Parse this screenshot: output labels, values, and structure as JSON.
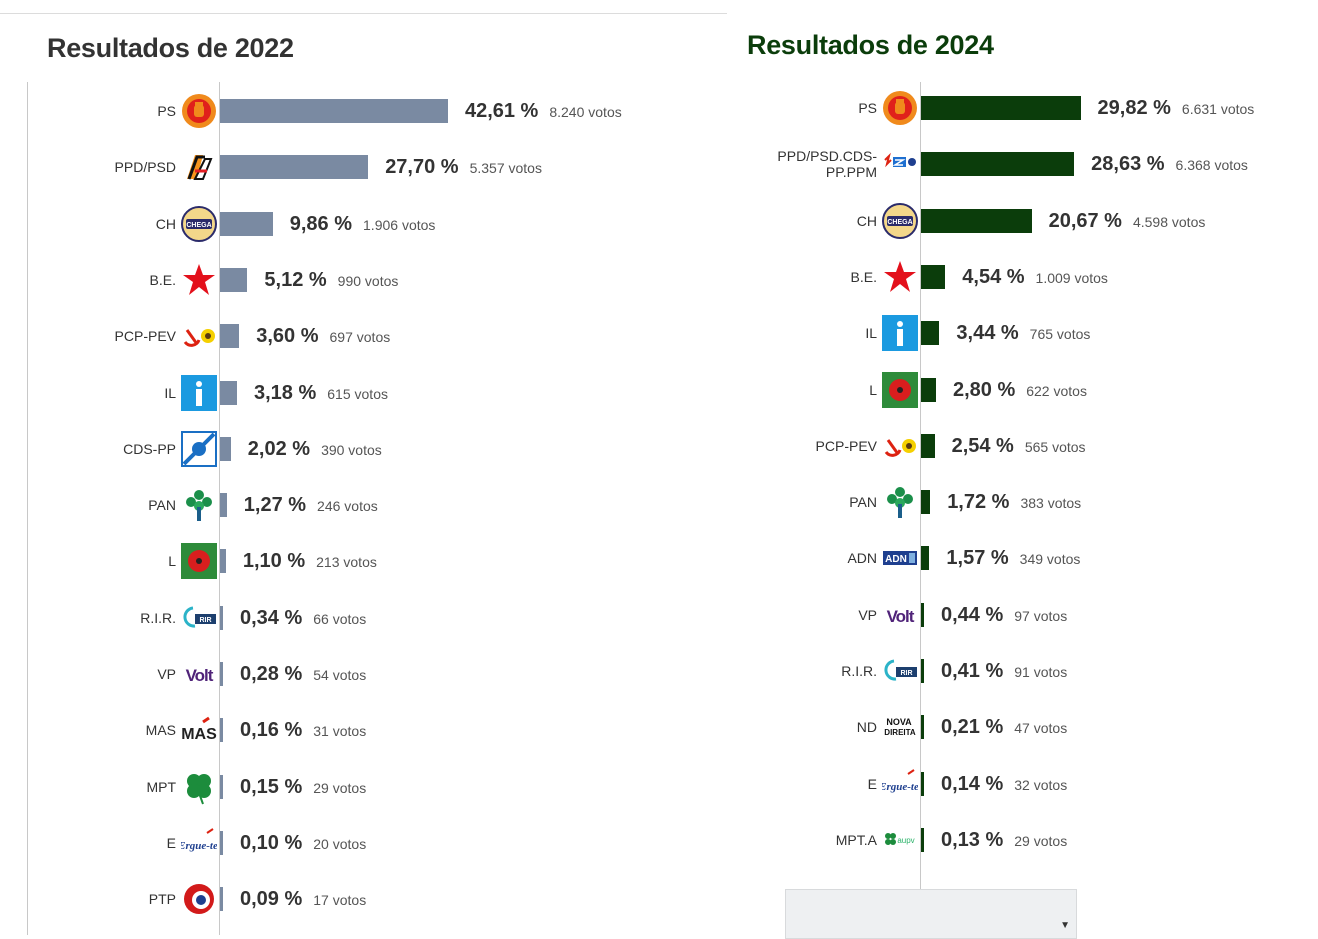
{
  "chart_data": [
    {
      "type": "bar",
      "title": "Resultados de 2022",
      "orientation": "horizontal",
      "bar_color": "#7a8aa2",
      "categories": [
        "PS",
        "PPD/PSD",
        "CH",
        "B.E.",
        "PCP-PEV",
        "IL",
        "CDS-PP",
        "PAN",
        "L",
        "R.I.R.",
        "VP",
        "MAS",
        "MPT",
        "E",
        "PTP"
      ],
      "values": [
        42.61,
        27.7,
        9.86,
        5.12,
        3.6,
        3.18,
        2.02,
        1.27,
        1.1,
        0.34,
        0.28,
        0.16,
        0.15,
        0.1,
        0.09
      ],
      "value_labels": [
        "42,61 %",
        "27,70 %",
        "9,86 %",
        "5,12 %",
        "3,60 %",
        "3,18 %",
        "2,02 %",
        "1,27 %",
        "1,10 %",
        "0,34 %",
        "0,28 %",
        "0,16 %",
        "0,15 %",
        "0,10 %",
        "0,09 %"
      ],
      "votes": [
        8240,
        5357,
        1906,
        990,
        697,
        615,
        390,
        246,
        213,
        66,
        54,
        31,
        29,
        20,
        17
      ],
      "votes_labels": [
        "8.240 votos",
        "5.357 votos",
        "1.906 votos",
        "990 votos",
        "697 votos",
        "615 votos",
        "390 votos",
        "246 votos",
        "213 votos",
        "66 votos",
        "54 votos",
        "31 votos",
        "29 votos",
        "20 votos",
        "17 votos"
      ],
      "logos": [
        "ps-logo",
        "psd-logo",
        "chega-logo",
        "be-logo",
        "pcp-pev-logo",
        "il-logo",
        "cds-pp-logo",
        "pan-logo",
        "livre-logo",
        "rir-logo",
        "volt-logo",
        "mas-logo",
        "mpt-logo",
        "ergue-te-logo",
        "ptp-logo"
      ]
    },
    {
      "type": "bar",
      "title": "Resultados de 2024",
      "orientation": "horizontal",
      "bar_color": "#0b3d0b",
      "categories": [
        "PS",
        "PPD/PSD.CDS-PP.PPM",
        "CH",
        "B.E.",
        "IL",
        "L",
        "PCP-PEV",
        "PAN",
        "ADN",
        "VP",
        "R.I.R.",
        "ND",
        "E",
        "MPT.A"
      ],
      "values": [
        29.82,
        28.63,
        20.67,
        4.54,
        3.44,
        2.8,
        2.54,
        1.72,
        1.57,
        0.44,
        0.41,
        0.21,
        0.14,
        0.13
      ],
      "value_labels": [
        "29,82 %",
        "28,63 %",
        "20,67 %",
        "4,54 %",
        "3,44 %",
        "2,80 %",
        "2,54 %",
        "1,72 %",
        "1,57 %",
        "0,44 %",
        "0,41 %",
        "0,21 %",
        "0,14 %",
        "0,13 %"
      ],
      "votes": [
        6631,
        6368,
        4598,
        1009,
        765,
        622,
        565,
        383,
        349,
        97,
        91,
        47,
        32,
        29
      ],
      "votes_labels": [
        "6.631 votos",
        "6.368 votos",
        "4.598 votos",
        "1.009 votos",
        "765 votos",
        "622 votos",
        "565 votos",
        "383 votos",
        "349 votos",
        "97 votos",
        "91 votos",
        "47 votos",
        "32 votos",
        "29 votos"
      ],
      "logos": [
        "ps-logo",
        "ad-logo",
        "chega-logo",
        "be-logo",
        "il-logo",
        "livre-logo",
        "pcp-pev-logo",
        "pan-logo",
        "adn-logo",
        "volt-logo",
        "rir-logo",
        "nova-direita-logo",
        "ergue-te-logo",
        "mpt-alianca-logo"
      ]
    }
  ]
}
